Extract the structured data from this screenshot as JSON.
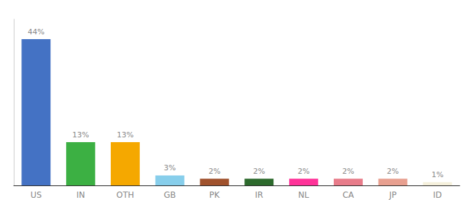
{
  "chart_data": {
    "type": "bar",
    "categories": [
      "US",
      "IN",
      "OTH",
      "GB",
      "PK",
      "IR",
      "NL",
      "CA",
      "JP",
      "ID"
    ],
    "values": [
      44,
      13,
      13,
      3,
      2,
      2,
      2,
      2,
      2,
      1
    ],
    "value_labels": [
      "44%",
      "13%",
      "13%",
      "3%",
      "2%",
      "2%",
      "2%",
      "2%",
      "2%",
      "1%"
    ],
    "colors": [
      "#4472c4",
      "#3cb043",
      "#f5a800",
      "#87ceeb",
      "#a0522d",
      "#2d6a2d",
      "#ff3399",
      "#e87c8a",
      "#e8a090",
      "#f5f0dc"
    ],
    "ylim": [
      0,
      50
    ],
    "data_labels": true,
    "tick_labels": "x",
    "grid": false
  }
}
